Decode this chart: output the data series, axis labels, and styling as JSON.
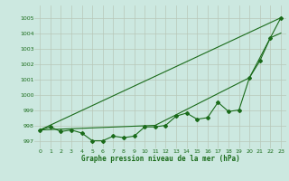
{
  "bg_color": "#cce8e0",
  "grid_color": "#b8c8b8",
  "line_color": "#1a6b1a",
  "xlim": [
    -0.5,
    23.5
  ],
  "ylim": [
    996.5,
    1005.8
  ],
  "yticks": [
    997,
    998,
    999,
    1000,
    1001,
    1002,
    1003,
    1004,
    1005
  ],
  "xticks": [
    0,
    1,
    2,
    3,
    4,
    5,
    6,
    7,
    8,
    9,
    10,
    11,
    12,
    13,
    14,
    15,
    16,
    17,
    18,
    19,
    20,
    21,
    22,
    23
  ],
  "xlabel": "Graphe pression niveau de la mer (hPa)",
  "series1_x": [
    0,
    1,
    2,
    3,
    4,
    5,
    6,
    7,
    8,
    9,
    10,
    11,
    12,
    13,
    14,
    15,
    16,
    17,
    18,
    19,
    20,
    21,
    22,
    23
  ],
  "series1_y": [
    997.7,
    997.9,
    997.6,
    997.7,
    997.5,
    997.0,
    997.0,
    997.3,
    997.2,
    997.3,
    997.9,
    997.9,
    998.0,
    998.6,
    998.8,
    998.4,
    998.5,
    999.5,
    998.9,
    999.0,
    1001.1,
    1002.2,
    1003.7,
    1005.0
  ],
  "series2_x": [
    0,
    23
  ],
  "series2_y": [
    997.7,
    1005.0
  ],
  "series3_x": [
    0,
    11,
    20,
    22,
    23
  ],
  "series3_y": [
    997.7,
    998.0,
    1001.1,
    1003.7,
    1004.0
  ]
}
